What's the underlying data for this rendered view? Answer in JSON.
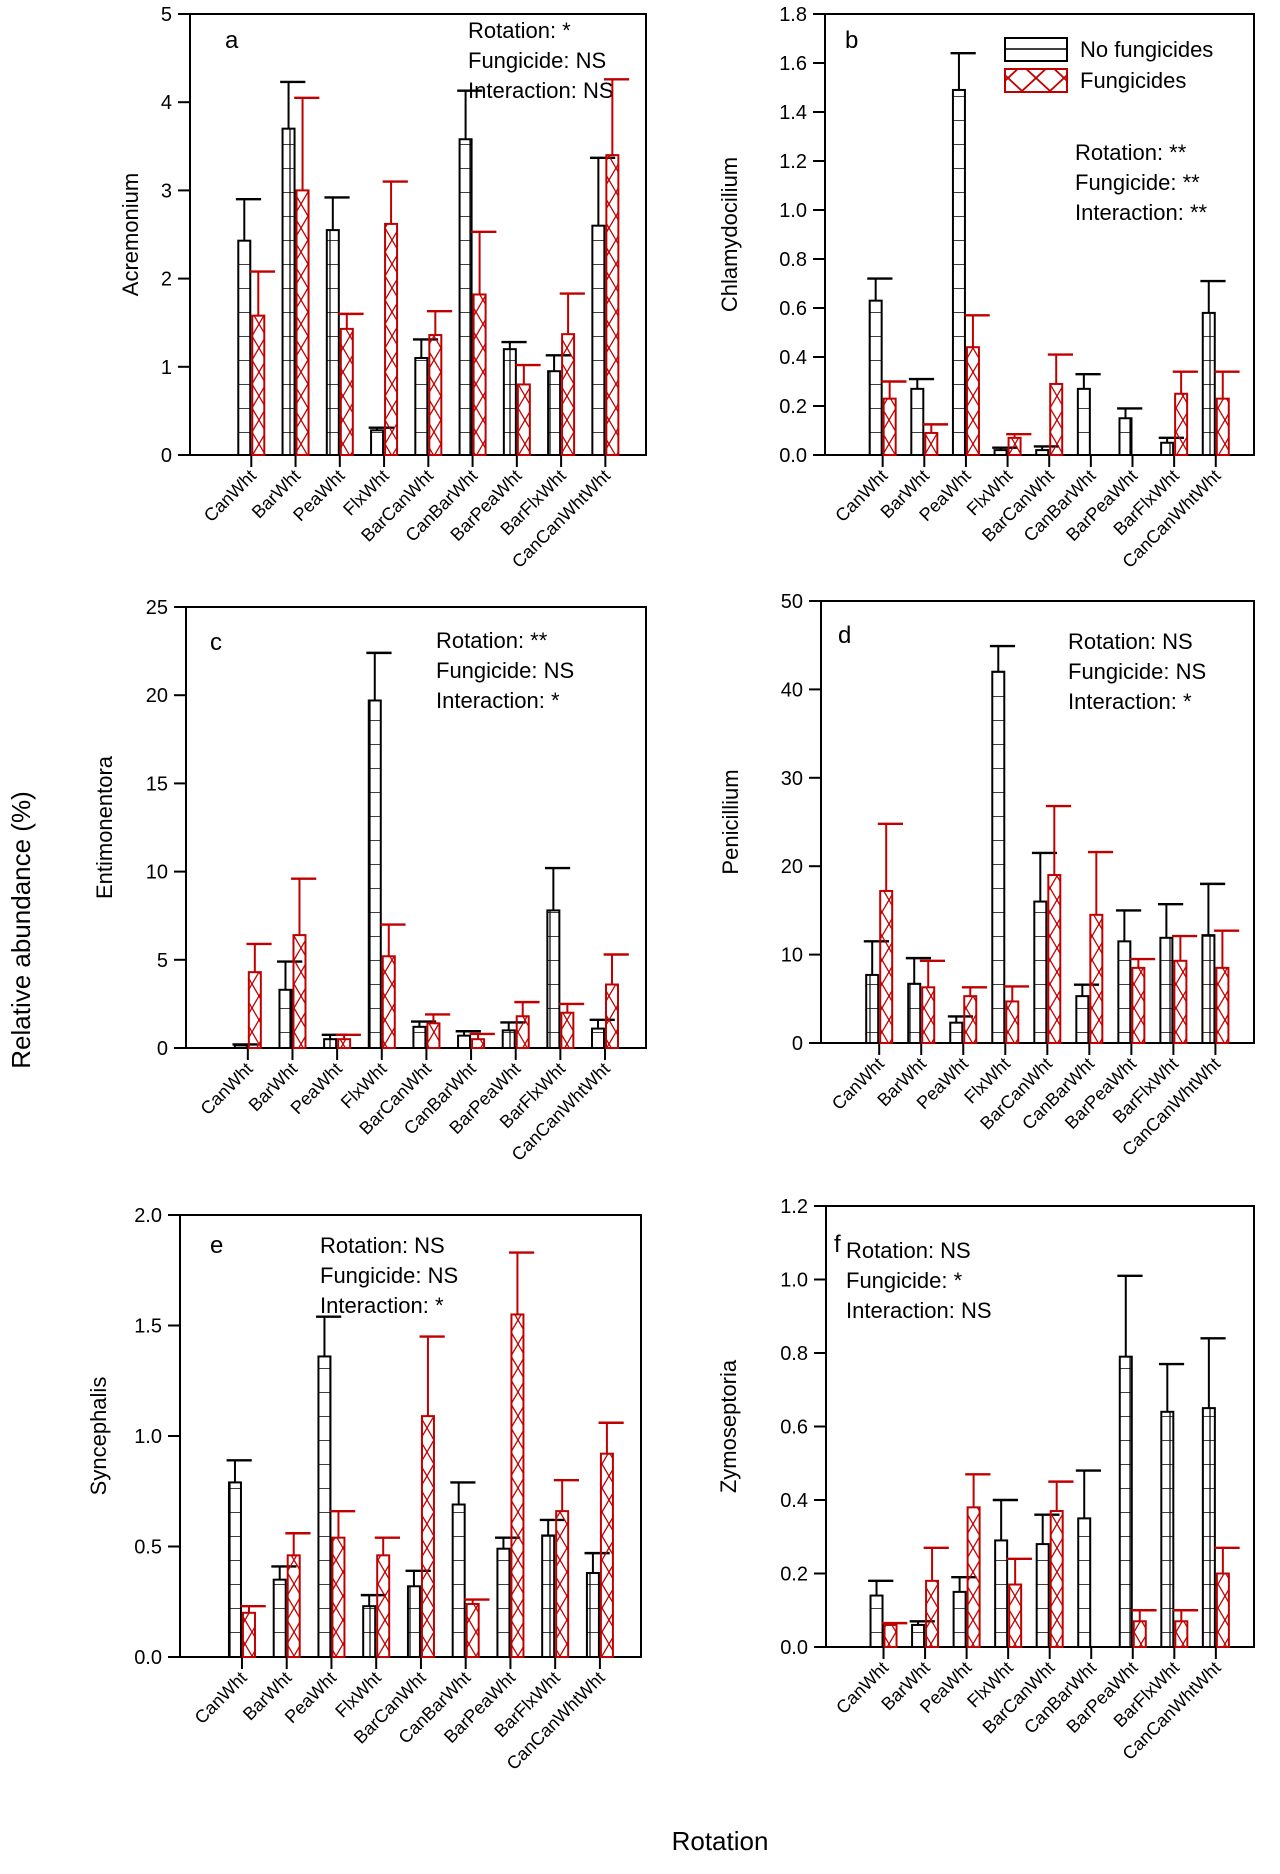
{
  "figure": {
    "ylabel_global": "Relative abundance (%)",
    "xlabel_global": "Rotation"
  },
  "legend": {
    "items": [
      {
        "label": "No fungicides",
        "color": "#000000",
        "pattern": "horizontal-grid"
      },
      {
        "label": "Fungicides",
        "color": "#c00000",
        "pattern": "crosshatch"
      }
    ]
  },
  "colors": {
    "no_fungicide": "#000000",
    "fungicide": "#c00000"
  },
  "chart_data": [
    {
      "type": "bar",
      "panel": "a",
      "ylabel": "Acremonium",
      "categories": [
        "CanWht",
        "BarWht",
        "PeaWht",
        "FlxWht",
        "BarCanWht",
        "CanBarWht",
        "BarPeaWht",
        "BarFlxWht",
        "CanCanWhtWht"
      ],
      "ylim": [
        0,
        5
      ],
      "yticks": [
        "0",
        "1",
        "2",
        "3",
        "4",
        "5"
      ],
      "series": [
        {
          "name": "No fungicides",
          "values": [
            2.43,
            3.7,
            2.55,
            0.28,
            1.1,
            3.58,
            1.2,
            0.95,
            2.6
          ],
          "errors": [
            0.47,
            0.53,
            0.37,
            0.03,
            0.21,
            0.55,
            0.08,
            0.18,
            0.77
          ]
        },
        {
          "name": "Fungicides",
          "values": [
            1.58,
            3.0,
            1.43,
            2.62,
            1.36,
            1.82,
            0.8,
            1.37,
            3.4
          ],
          "errors": [
            0.5,
            1.05,
            0.17,
            0.48,
            0.27,
            0.71,
            0.22,
            0.46,
            0.86
          ]
        }
      ],
      "stats": [
        "Rotation: *",
        "Fungicide: NS",
        "Interaction: NS"
      ],
      "stats_position": "top-right"
    },
    {
      "type": "bar",
      "panel": "b",
      "ylabel": "Chlamydocilium",
      "categories": [
        "CanWht",
        "BarWht",
        "PeaWht",
        "FlxWht",
        "BarCanWht",
        "CanBarWht",
        "BarPeaWht",
        "BarFlxWht",
        "CanCanWhtWht"
      ],
      "ylim": [
        0,
        1.8
      ],
      "yticks": [
        "0.0",
        "0.2",
        "0.4",
        "0.6",
        "0.8",
        "1.0",
        "1.2",
        "1.4",
        "1.6",
        "1.8"
      ],
      "series": [
        {
          "name": "No fungicides",
          "values": [
            0.63,
            0.27,
            1.49,
            0.02,
            0.02,
            0.27,
            0.15,
            0.05,
            0.58
          ],
          "errors": [
            0.09,
            0.04,
            0.15,
            0.01,
            0.015,
            0.06,
            0.04,
            0.02,
            0.13
          ]
        },
        {
          "name": "Fungicides",
          "values": [
            0.23,
            0.09,
            0.44,
            0.07,
            0.29,
            0.0,
            0.0,
            0.25,
            0.23
          ],
          "errors": [
            0.07,
            0.035,
            0.13,
            0.015,
            0.12,
            0.0,
            0.0,
            0.09,
            0.11
          ]
        }
      ],
      "stats": [
        "Rotation: **",
        "Fungicide: **",
        "Interaction: **"
      ],
      "stats_position": "top-right",
      "legend_position": "top-right"
    },
    {
      "type": "bar",
      "panel": "c",
      "ylabel": "Entimonentora",
      "categories": [
        "CanWht",
        "BarWht",
        "PeaWht",
        "FlxWht",
        "BarCanWht",
        "CanBarWht",
        "BarPeaWht",
        "BarFlxWht",
        "CanCanWhtWht"
      ],
      "ylim": [
        0,
        25
      ],
      "yticks": [
        "0",
        "5",
        "10",
        "15",
        "20",
        "25"
      ],
      "series": [
        {
          "name": "No fungicides",
          "values": [
            0.15,
            3.3,
            0.5,
            19.7,
            1.2,
            0.7,
            1.0,
            7.8,
            1.1
          ],
          "errors": [
            0.05,
            1.6,
            0.25,
            2.7,
            0.3,
            0.25,
            0.45,
            2.4,
            0.5
          ]
        },
        {
          "name": "Fungicides",
          "values": [
            4.3,
            6.4,
            0.5,
            5.2,
            1.4,
            0.5,
            1.8,
            2.0,
            3.6
          ],
          "errors": [
            1.6,
            3.2,
            0.25,
            1.8,
            0.5,
            0.3,
            0.8,
            0.5,
            1.7
          ]
        }
      ],
      "stats": [
        "Rotation: **",
        "Fungicide: NS",
        "Interaction: *"
      ],
      "stats_position": "top-right"
    },
    {
      "type": "bar",
      "panel": "d",
      "ylabel": "Penicillium",
      "categories": [
        "CanWht",
        "BarWht",
        "PeaWht",
        "FlxWht",
        "BarCanWht",
        "CanBarWht",
        "BarPeaWht",
        "BarFlxWht",
        "CanCanWhtWht"
      ],
      "ylim": [
        0,
        50
      ],
      "yticks": [
        "0",
        "10",
        "20",
        "30",
        "40",
        "50"
      ],
      "series": [
        {
          "name": "No fungicides",
          "values": [
            7.7,
            6.7,
            2.3,
            42.0,
            16.0,
            5.3,
            11.5,
            11.9,
            12.2
          ],
          "errors": [
            3.8,
            2.9,
            0.7,
            2.9,
            5.5,
            1.3,
            3.5,
            3.8,
            5.8
          ]
        },
        {
          "name": "Fungicides",
          "values": [
            17.2,
            6.3,
            5.3,
            4.7,
            19.0,
            14.5,
            8.5,
            9.3,
            8.5
          ],
          "errors": [
            7.6,
            3.0,
            1.0,
            1.7,
            7.8,
            7.1,
            1.0,
            2.8,
            4.2
          ]
        }
      ],
      "stats": [
        "Rotation: NS",
        "Fungicide: NS",
        "Interaction: *"
      ],
      "stats_position": "top-right"
    },
    {
      "type": "bar",
      "panel": "e",
      "ylabel": "Syncephalis",
      "categories": [
        "CanWht",
        "BarWht",
        "PeaWht",
        "FlxWht",
        "BarCanWht",
        "CanBarWht",
        "BarPeaWht",
        "BarFlxWht",
        "CanCanWhtWht"
      ],
      "ylim": [
        0,
        2.0
      ],
      "yticks": [
        "0.0",
        "0.5",
        "1.0",
        "1.5",
        "2.0"
      ],
      "series": [
        {
          "name": "No fungicides",
          "values": [
            0.79,
            0.35,
            1.36,
            0.23,
            0.32,
            0.69,
            0.49,
            0.55,
            0.38
          ],
          "errors": [
            0.1,
            0.06,
            0.18,
            0.05,
            0.07,
            0.1,
            0.05,
            0.07,
            0.09
          ]
        },
        {
          "name": "Fungicides",
          "values": [
            0.2,
            0.46,
            0.54,
            0.46,
            1.09,
            0.24,
            1.55,
            0.66,
            0.92
          ],
          "errors": [
            0.03,
            0.1,
            0.12,
            0.08,
            0.36,
            0.02,
            0.28,
            0.14,
            0.14
          ]
        }
      ],
      "stats": [
        "Rotation: NS",
        "Fungicide: NS",
        "Interaction: *"
      ],
      "stats_position": "top-center"
    },
    {
      "type": "bar",
      "panel": "f",
      "ylabel": "Zymoseptoria",
      "categories": [
        "CanWht",
        "BarWht",
        "PeaWht",
        "FlxWht",
        "BarCanWht",
        "CanBarWht",
        "BarPeaWht",
        "BarFlxWht",
        "CanCanWhtWht"
      ],
      "ylim": [
        0,
        1.2
      ],
      "yticks": [
        "0.0",
        "0.2",
        "0.4",
        "0.6",
        "0.8",
        "1.0",
        "1.2"
      ],
      "series": [
        {
          "name": "No fungicides",
          "values": [
            0.14,
            0.06,
            0.15,
            0.29,
            0.28,
            0.35,
            0.79,
            0.64,
            0.65
          ],
          "errors": [
            0.04,
            0.01,
            0.04,
            0.11,
            0.08,
            0.13,
            0.22,
            0.13,
            0.19
          ]
        },
        {
          "name": "Fungicides",
          "values": [
            0.06,
            0.18,
            0.38,
            0.17,
            0.37,
            0.0,
            0.07,
            0.07,
            0.2
          ],
          "errors": [
            0.005,
            0.09,
            0.09,
            0.07,
            0.08,
            0.0,
            0.03,
            0.03,
            0.07
          ]
        }
      ],
      "stats": [
        "Rotation: NS",
        "Fungicide: *",
        "Interaction: NS"
      ],
      "stats_position": "top-left"
    }
  ]
}
